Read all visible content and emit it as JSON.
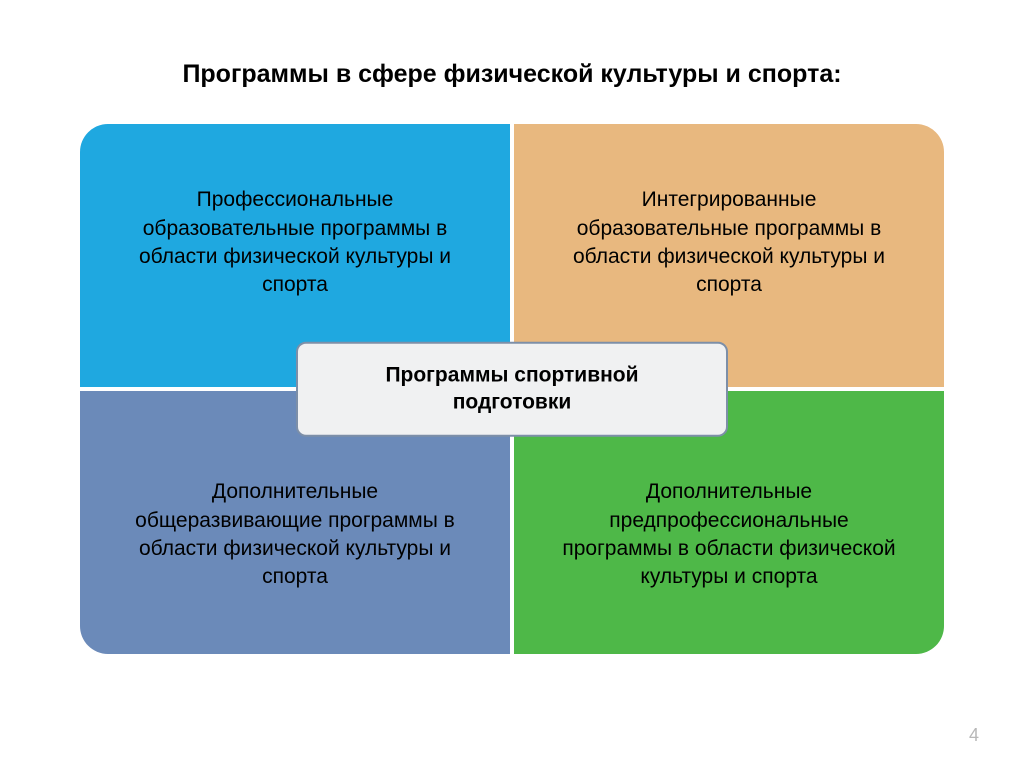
{
  "title": "Программы в сфере физической культуры и спорта:",
  "quadrants": {
    "top_left": {
      "text": "Профессиональные образовательные программы в области физической культуры и спорта",
      "background_color": "#1fa8e0"
    },
    "top_right": {
      "text": "Интегрированные образовательные программы в области физической культуры и спорта",
      "background_color": "#e8b87f"
    },
    "bottom_left": {
      "text": "Дополнительные общеразвивающие программы в области физической культуры и спорта",
      "background_color": "#6b8ab9"
    },
    "bottom_right": {
      "text": "Дополнительные предпрофессиональные программы в области физической культуры и спорта",
      "background_color": "#4eb848"
    }
  },
  "center": {
    "text": "Программы спортивной подготовки",
    "background_color": "#f0f1f2",
    "border_color": "#7d8fa8"
  },
  "page_number": "4",
  "layout": {
    "type": "infographic",
    "structure": "2x2-grid-with-center-overlay",
    "container_border_radius": 28,
    "gap_color": "#ffffff",
    "gap_width": 4,
    "title_fontsize": 25,
    "quadrant_fontsize": 21,
    "center_fontsize": 21,
    "page_number_color": "#b8b8b8"
  }
}
